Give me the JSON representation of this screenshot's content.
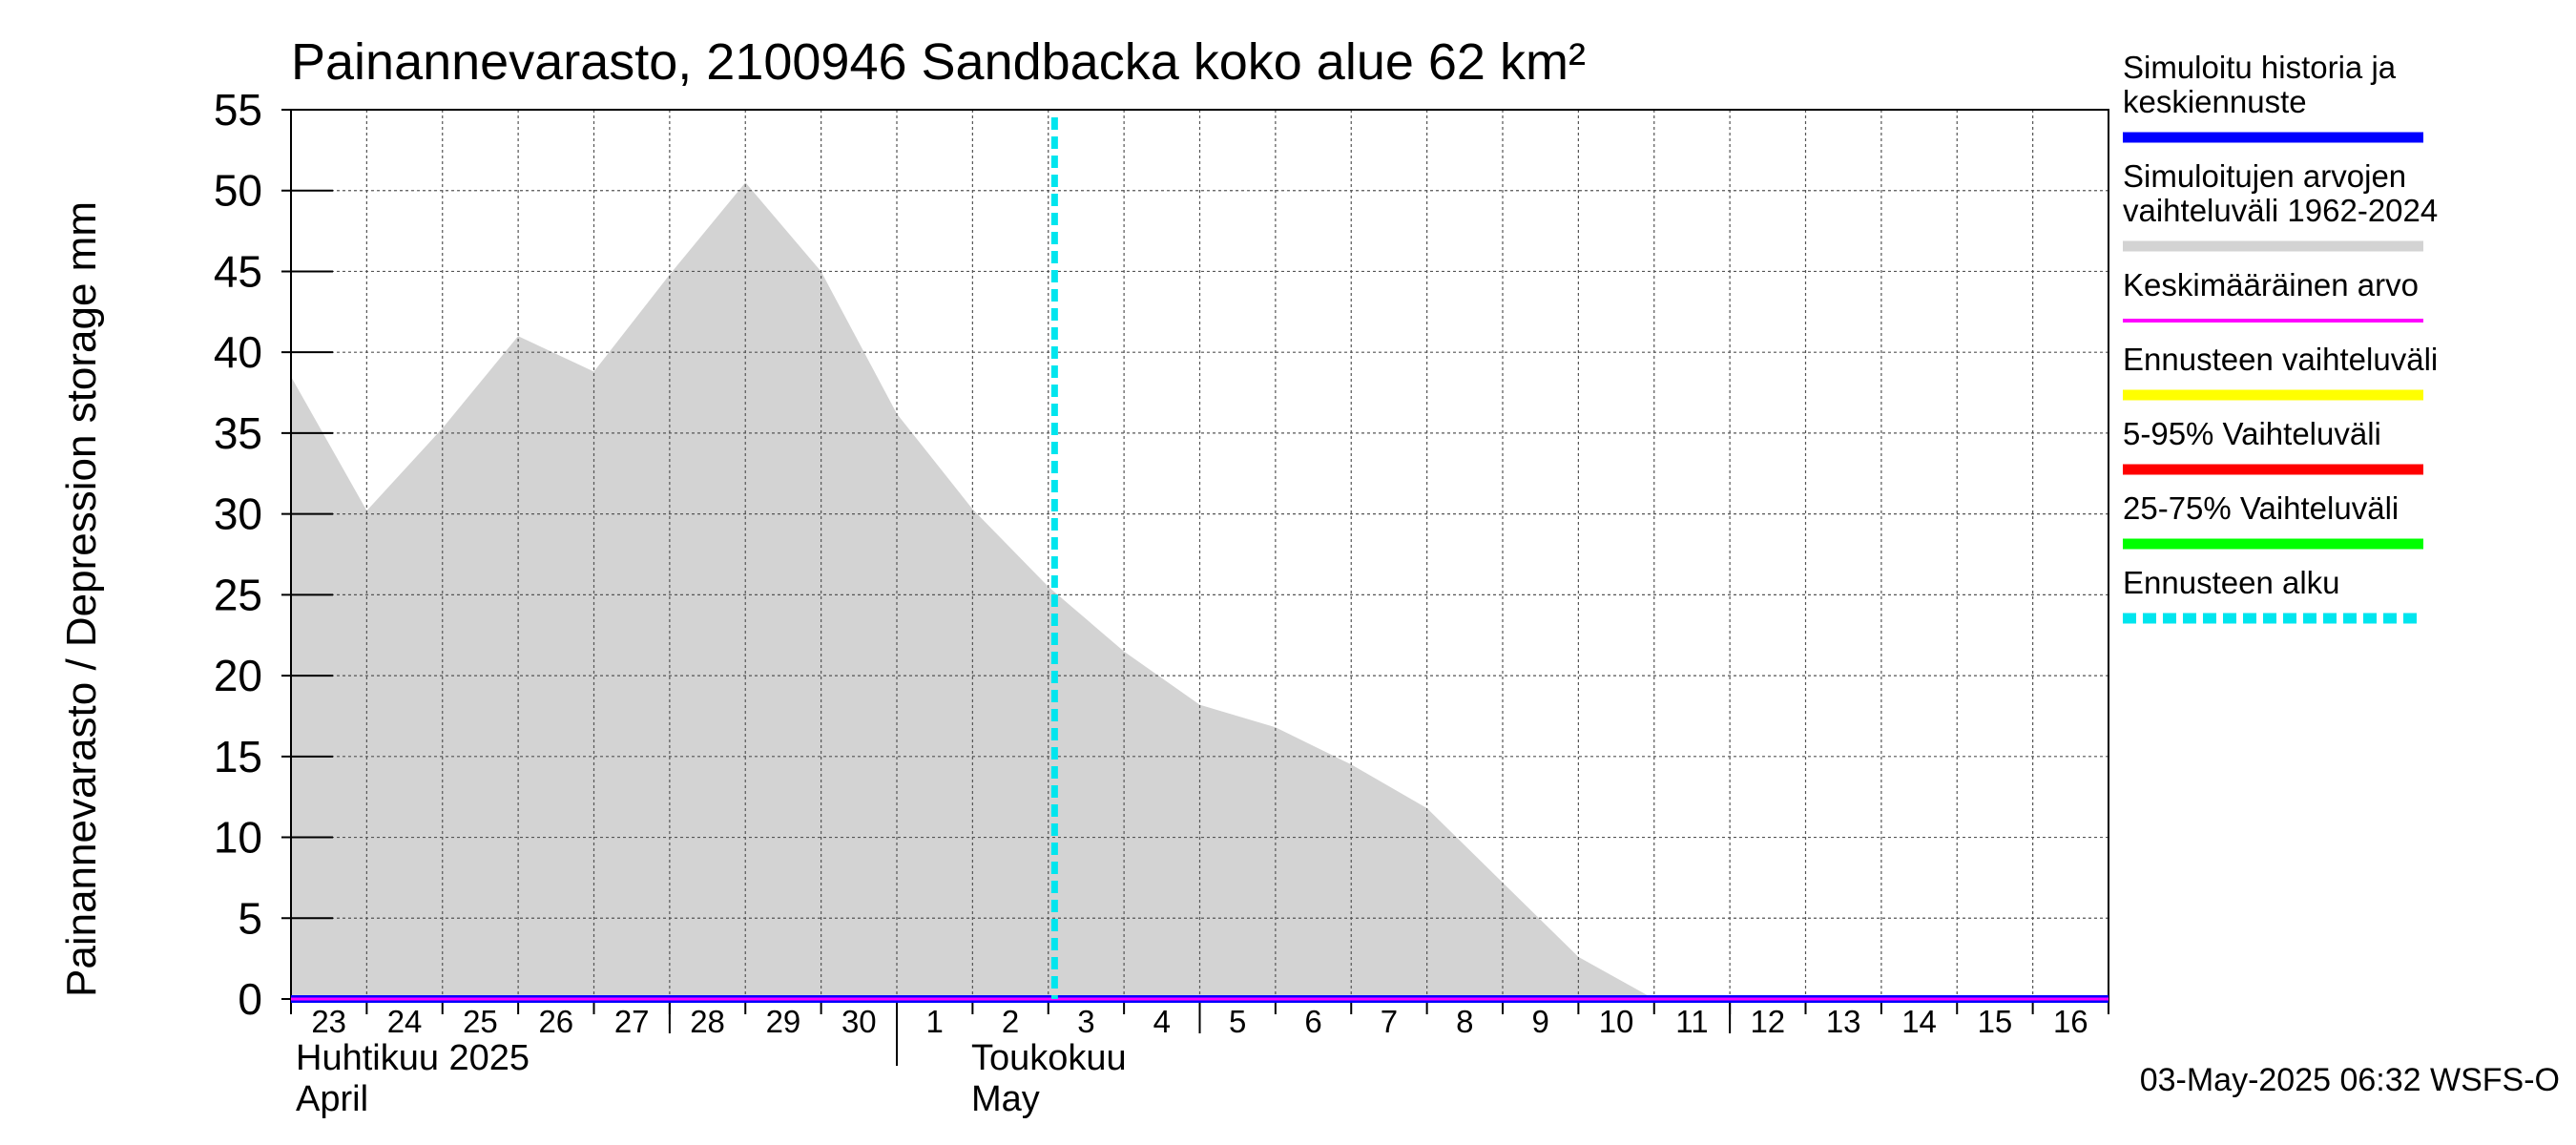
{
  "chart_data": {
    "type": "area",
    "title": "Painannevarasto, 2100946 Sandbacka koko alue 62 km²",
    "ylabel": "Painannevarasto / Depression storage    mm",
    "ylim": [
      0,
      55
    ],
    "yticks": [
      "0",
      "5",
      "10",
      "15",
      "20",
      "25",
      "30",
      "35",
      "40",
      "45",
      "50",
      "55"
    ],
    "xlim": [
      "2025-04-23",
      "2025-05-17"
    ],
    "xtick_labels": [
      "23",
      "24",
      "25",
      "26",
      "27",
      "28",
      "29",
      "30",
      "1",
      "2",
      "3",
      "4",
      "5",
      "6",
      "7",
      "8",
      "9",
      "10",
      "11",
      "12",
      "13",
      "14",
      "15",
      "16"
    ],
    "month_labels": [
      {
        "fi": "Huhtikuu  2025",
        "en": "April"
      },
      {
        "fi": "Toukokuu",
        "en": "May"
      }
    ],
    "grid": true,
    "forecast_start": "2025-05-03T02:00",
    "range_band": {
      "name": "Simuloitujen arvojen vaihteluväli 1962-2024",
      "x": [
        "2025-04-23",
        "2025-04-24",
        "2025-04-25",
        "2025-04-26",
        "2025-04-27",
        "2025-04-28",
        "2025-04-29",
        "2025-04-30",
        "2025-05-01",
        "2025-05-02",
        "2025-05-03",
        "2025-05-04",
        "2025-05-05",
        "2025-05-06",
        "2025-05-07",
        "2025-05-08",
        "2025-05-09",
        "2025-05-10",
        "2025-05-11",
        "2025-05-17"
      ],
      "upper": [
        38.5,
        30.2,
        35.3,
        41.0,
        38.8,
        44.8,
        50.5,
        45.0,
        36.2,
        30.3,
        25.5,
        21.5,
        18.2,
        16.8,
        14.5,
        11.8,
        7.2,
        2.6,
        0.0,
        0.0
      ],
      "lower": [
        0,
        0,
        0,
        0,
        0,
        0,
        0,
        0,
        0,
        0,
        0,
        0,
        0,
        0,
        0,
        0,
        0,
        0,
        0,
        0
      ]
    },
    "series": [
      {
        "name": "Simuloitu historia ja keskiennuste",
        "color": "#0000ff",
        "x": [
          "2025-04-23",
          "2025-05-17"
        ],
        "values": [
          0,
          0
        ]
      },
      {
        "name": "Keskimääräinen arvo",
        "color": "#ff00ff",
        "x": [
          "2025-04-23",
          "2025-05-17"
        ],
        "values": [
          0,
          0
        ]
      }
    ],
    "legend": {
      "position": "right",
      "items": [
        {
          "label_lines": [
            "Simuloitu historia ja",
            "keskiennuste"
          ],
          "color": "#0000ff",
          "style": "solid"
        },
        {
          "label_lines": [
            "Simuloitujen arvojen",
            "vaihteluväli 1962-2024"
          ],
          "color": "#d3d3d3",
          "style": "solid"
        },
        {
          "label_lines": [
            "Keskimääräinen arvo"
          ],
          "color": "#ff00ff",
          "style": "thin"
        },
        {
          "label_lines": [
            "Ennusteen vaihteluväli"
          ],
          "color": "#ffff00",
          "style": "solid"
        },
        {
          "label_lines": [
            "5-95% Vaihteluväli"
          ],
          "color": "#ff0000",
          "style": "solid"
        },
        {
          "label_lines": [
            "25-75% Vaihteluväli"
          ],
          "color": "#00ff00",
          "style": "solid"
        },
        {
          "label_lines": [
            "Ennusteen alku"
          ],
          "color": "#00e5ee",
          "style": "dashed"
        }
      ]
    },
    "footer": "03-May-2025 06:32 WSFS-O"
  }
}
